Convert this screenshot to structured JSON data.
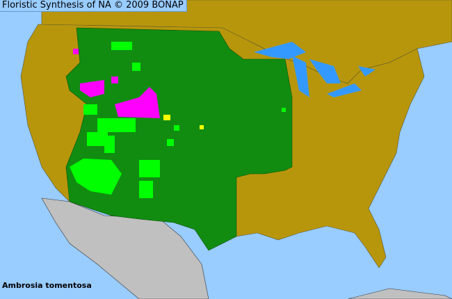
{
  "header": {
    "title": "Floristic Synthesis of NA © 2009 BONAP"
  },
  "map": {
    "species": "Ambrosia tomentosa",
    "colors": {
      "ocean": "#99ccff",
      "lakes": "#3399ff",
      "non_us_land": "#c0c0c0",
      "species_absent_state": "#b8960c",
      "species_present_state": "#118c11",
      "present_county": "#00ff00",
      "noxious_or_rare_county": "#ff00ff",
      "adventive_county": "#ffff00"
    }
  }
}
